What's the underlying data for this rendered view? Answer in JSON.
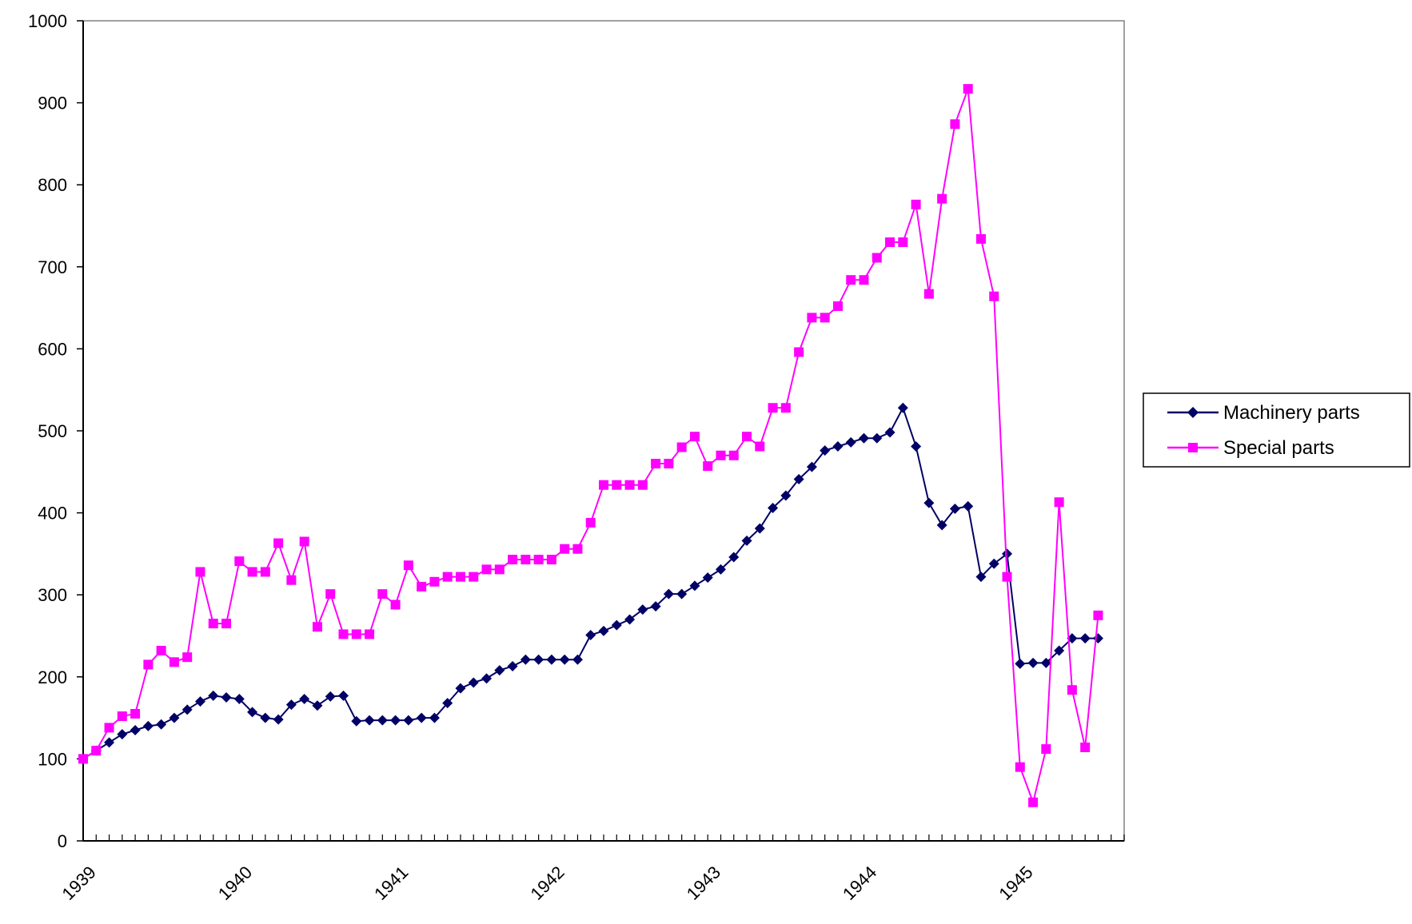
{
  "chart_data": {
    "type": "line",
    "title": "",
    "xlabel": "",
    "ylabel": "",
    "ylim": [
      0,
      1000
    ],
    "yticks": [
      0,
      100,
      200,
      300,
      400,
      500,
      600,
      700,
      800,
      900,
      1000
    ],
    "year_labels": [
      "1939",
      "1940",
      "1941",
      "1942",
      "1943",
      "1944",
      "1945"
    ],
    "x_range_months": [
      0,
      80
    ],
    "legend_position": "right",
    "grid": false,
    "series": [
      {
        "name": "Machinery parts",
        "color": "#000066",
        "marker": "diamond",
        "values": [
          100,
          110,
          120,
          130,
          135,
          140,
          142,
          150,
          160,
          170,
          177,
          175,
          173,
          157,
          150,
          148,
          166,
          173,
          165,
          176,
          177,
          146,
          147,
          147,
          147,
          147,
          150,
          150,
          168,
          186,
          193,
          198,
          208,
          213,
          221,
          221,
          221,
          221,
          221,
          251,
          256,
          263,
          270,
          282,
          286,
          301,
          301,
          311,
          321,
          331,
          346,
          366,
          381,
          406,
          421,
          441,
          456,
          476,
          481,
          486,
          491,
          491,
          498,
          528,
          481,
          412,
          385,
          405,
          408,
          322,
          338,
          350,
          216,
          217,
          217,
          232,
          247,
          247,
          247
        ]
      },
      {
        "name": "Special parts",
        "color": "#ff00ff",
        "marker": "square",
        "values": [
          100,
          110,
          138,
          152,
          155,
          215,
          232,
          218,
          224,
          328,
          265,
          265,
          341,
          328,
          328,
          363,
          318,
          365,
          261,
          301,
          252,
          252,
          252,
          301,
          288,
          336,
          310,
          316,
          322,
          322,
          322,
          331,
          331,
          343,
          343,
          343,
          343,
          356,
          356,
          388,
          434,
          434,
          434,
          434,
          460,
          460,
          480,
          493,
          457,
          470,
          470,
          493,
          481,
          528,
          528,
          596,
          638,
          638,
          652,
          684,
          684,
          711,
          730,
          730,
          776,
          667,
          783,
          874,
          917,
          734,
          664,
          322,
          90,
          47,
          112,
          413,
          184,
          114,
          275
        ]
      }
    ]
  }
}
